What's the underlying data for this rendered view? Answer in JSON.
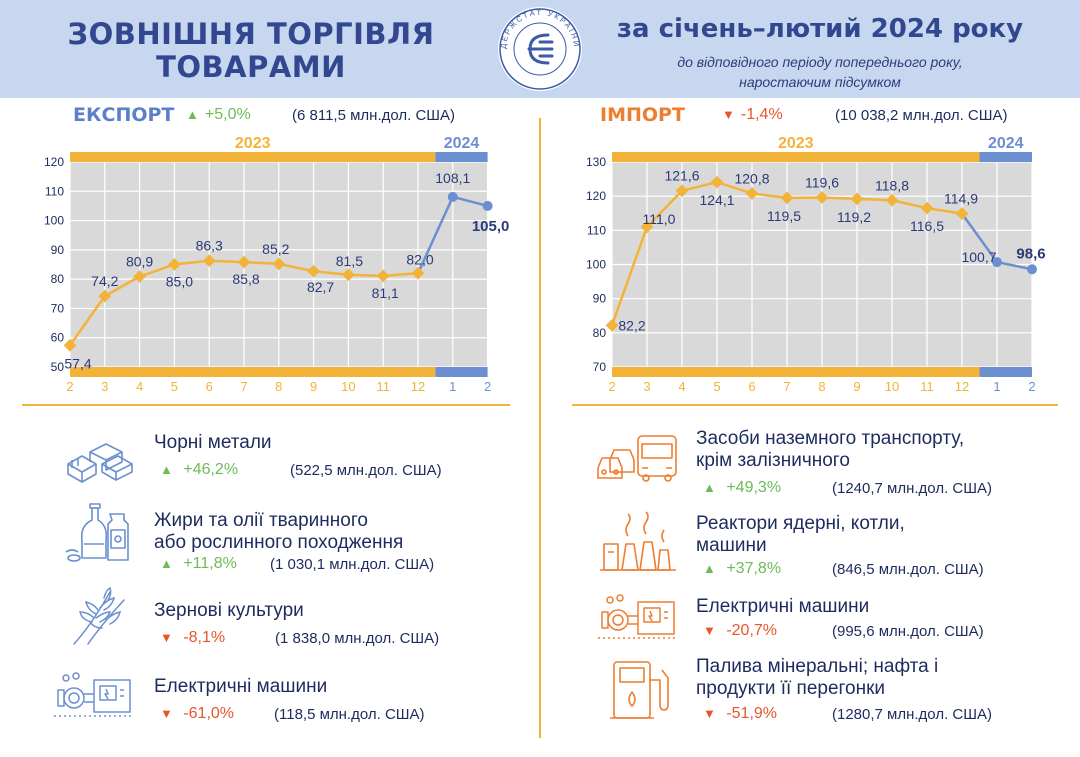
{
  "header": {
    "title_line1": "ЗОВНІШНЯ ТОРГІВЛЯ",
    "title_line2": "ТОВАРАМИ",
    "period": "за січень–лютий 2024 року",
    "subtitle_line1": "до відповідного періоду попереднього року,",
    "subtitle_line2": "наростаючим підсумком",
    "emblem_text": "ДЕРЖСТАТ УКРАЇНИ"
  },
  "colors": {
    "header_bg": "#c6d7ef",
    "orange": "#f3b339",
    "blue": "#6b8fd0",
    "export_title": "#5b7fc9",
    "import_title": "#ee7d2f",
    "up": "#6dbb57",
    "down": "#e8552b",
    "grid": "#d9d9d9"
  },
  "export": {
    "title": "ЕКСПОРТ",
    "delta": "+5,0%",
    "direction": "up",
    "total": "(6 811,5 млн.дол. США)",
    "year_a": "2023",
    "year_b": "2024"
  },
  "import": {
    "title": "ІМПОРТ",
    "delta": "-1,4%",
    "direction": "down",
    "total": "(10 038,2 млн.дол. США)",
    "year_a": "2023",
    "year_b": "2024"
  },
  "chart_data": [
    {
      "type": "line",
      "x": [
        "2",
        "3",
        "4",
        "5",
        "6",
        "7",
        "8",
        "9",
        "10",
        "11",
        "12",
        "1",
        "2"
      ],
      "ylim": [
        50,
        120
      ],
      "yticks": [
        50,
        60,
        70,
        80,
        90,
        100,
        110,
        120
      ],
      "series": [
        {
          "values": [
            57.4,
            74.2,
            80.9,
            85.0,
            86.3,
            85.8,
            85.2,
            82.7,
            81.5,
            81.1,
            82.0,
            108.1,
            105.0
          ],
          "labels": [
            "57,4",
            "74,2",
            "80,9",
            "85,0",
            "86,3",
            "85,8",
            "85,2",
            "82,7",
            "81,5",
            "81,1",
            "82,0",
            "108,1",
            "105,0"
          ]
        }
      ],
      "year_groups": [
        {
          "label": "2023",
          "from": 0,
          "to": 10
        },
        {
          "label": "2024",
          "from": 11,
          "to": 12
        }
      ],
      "grid": true
    },
    {
      "type": "line",
      "x": [
        "2",
        "3",
        "4",
        "5",
        "6",
        "7",
        "8",
        "9",
        "10",
        "11",
        "12",
        "1",
        "2"
      ],
      "ylim": [
        70,
        130
      ],
      "yticks": [
        70,
        80,
        90,
        100,
        110,
        120,
        130
      ],
      "series": [
        {
          "values": [
            82.2,
            111.0,
            121.6,
            124.1,
            120.8,
            119.5,
            119.6,
            119.2,
            118.8,
            116.5,
            114.9,
            100.7,
            98.6
          ],
          "labels": [
            "82,2",
            "111,0",
            "121,6",
            "124,1",
            "120,8",
            "119,5",
            "119,6",
            "119,2",
            "118,8",
            "116,5",
            "114,9",
            "100,7",
            "98,6"
          ]
        }
      ],
      "year_groups": [
        {
          "label": "2023",
          "from": 0,
          "to": 10
        },
        {
          "label": "2024",
          "from": 11,
          "to": 12
        }
      ],
      "grid": true
    }
  ],
  "export_items": [
    {
      "name_line1": "Чорні метали",
      "name_line2": "",
      "delta": "+46,2%",
      "direction": "up",
      "value": "(522,5 млн.дол. США)",
      "icon": "metal-bars-icon"
    },
    {
      "name_line1": "Жири та олії тваринного",
      "name_line2": "або рослинного походження",
      "delta": "+11,8%",
      "direction": "up",
      "value": "(1 030,1 млн.дол. США)",
      "icon": "oil-bottles-icon"
    },
    {
      "name_line1": "Зернові культури",
      "name_line2": "",
      "delta": "-8,1%",
      "direction": "down",
      "value": "(1 838,0 млн.дол. США)",
      "icon": "wheat-icon"
    },
    {
      "name_line1": "Електричні машини",
      "name_line2": "",
      "delta": "-61,0%",
      "direction": "down",
      "value": "(118,5 млн.дол. США)",
      "icon": "electric-machine-icon"
    }
  ],
  "import_items": [
    {
      "name_line1": "Засоби наземного транспорту,",
      "name_line2": "крім залізничного",
      "delta": "+49,3%",
      "direction": "up",
      "value": "(1240,7 млн.дол. США)",
      "icon": "transport-icon"
    },
    {
      "name_line1": "Реактори ядерні, котли,",
      "name_line2": "машини",
      "delta": "+37,8%",
      "direction": "up",
      "value": "(846,5 млн.дол. США)",
      "icon": "reactor-icon"
    },
    {
      "name_line1": "Електричні машини",
      "name_line2": "",
      "delta": "-20,7%",
      "direction": "down",
      "value": "(995,6 млн.дол. США)",
      "icon": "electric-machine-icon"
    },
    {
      "name_line1": "Палива мінеральні; нафта і",
      "name_line2": "продукти її перегонки",
      "delta": "-51,9%",
      "direction": "down",
      "value": "(1280,7 млн.дол. США)",
      "icon": "fuel-pump-icon"
    }
  ]
}
